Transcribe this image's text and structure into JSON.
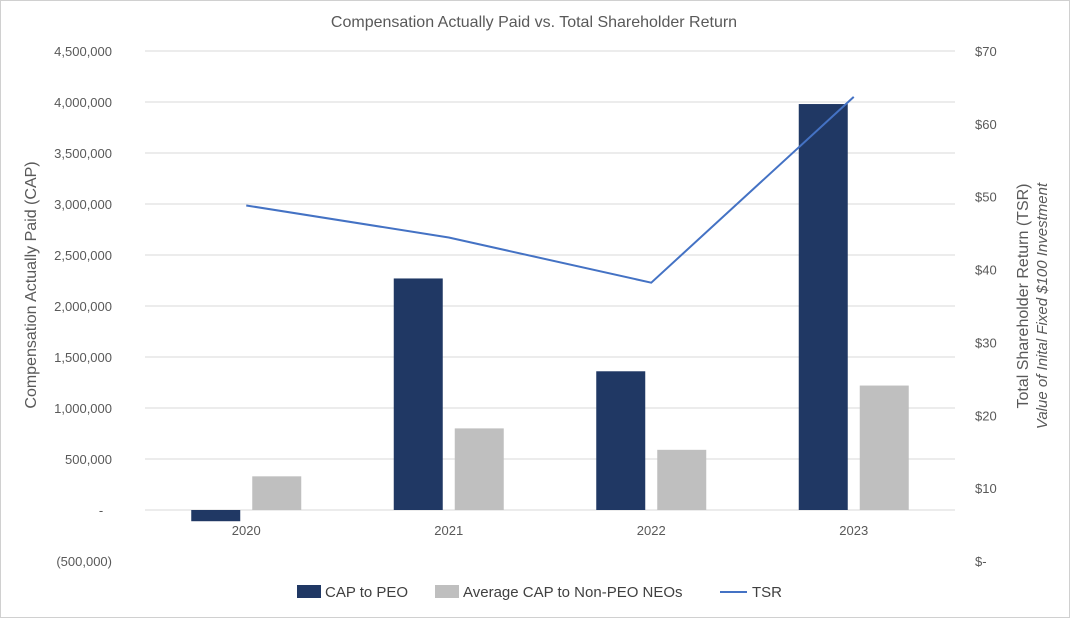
{
  "chart_data": {
    "type": "bar",
    "title": "Compensation Actually Paid vs. Total Shareholder Return",
    "categories": [
      "2020",
      "2021",
      "2022",
      "2023"
    ],
    "ylabel": "Compensation Actually Paid (CAP)",
    "y2label": "Total Shareholder Return (TSR)",
    "y2sublabel": "Value of Inital Fixed $100 Investment",
    "ylim": [
      -500000,
      4500000
    ],
    "y2lim": [
      0,
      70
    ],
    "yticks": [
      {
        "value": 4500000,
        "label": "4,500,000"
      },
      {
        "value": 4000000,
        "label": "4,000,000"
      },
      {
        "value": 3500000,
        "label": "3,500,000"
      },
      {
        "value": 3000000,
        "label": "3,000,000"
      },
      {
        "value": 2500000,
        "label": "2,500,000"
      },
      {
        "value": 2000000,
        "label": "2,000,000"
      },
      {
        "value": 1500000,
        "label": "1,500,000"
      },
      {
        "value": 1000000,
        "label": "1,000,000"
      },
      {
        "value": 500000,
        "label": "500,000"
      },
      {
        "value": 0,
        "label": "-"
      },
      {
        "value": -500000,
        "label": "(500,000)"
      }
    ],
    "y2ticks": [
      {
        "value": 70,
        "label": "$70"
      },
      {
        "value": 60,
        "label": "$60"
      },
      {
        "value": 50,
        "label": "$50"
      },
      {
        "value": 40,
        "label": "$40"
      },
      {
        "value": 30,
        "label": "$30"
      },
      {
        "value": 20,
        "label": "$20"
      },
      {
        "value": 10,
        "label": "$10"
      },
      {
        "value": 0,
        "label": "$-"
      }
    ],
    "series": [
      {
        "name": "CAP to PEO",
        "kind": "bar",
        "axis": "left",
        "color": "#203864",
        "values": [
          -110000,
          2270000,
          1360000,
          3980000
        ]
      },
      {
        "name": "Average CAP to Non-PEO NEOs",
        "kind": "bar",
        "axis": "left",
        "color": "#bfbfbf",
        "values": [
          330000,
          800000,
          590000,
          1220000
        ]
      },
      {
        "name": "TSR",
        "kind": "line",
        "axis": "right",
        "color": "#4472c4",
        "values": [
          48.8,
          44.4,
          38.2,
          63.7
        ]
      }
    ],
    "grid": true,
    "legend_position": "bottom"
  }
}
